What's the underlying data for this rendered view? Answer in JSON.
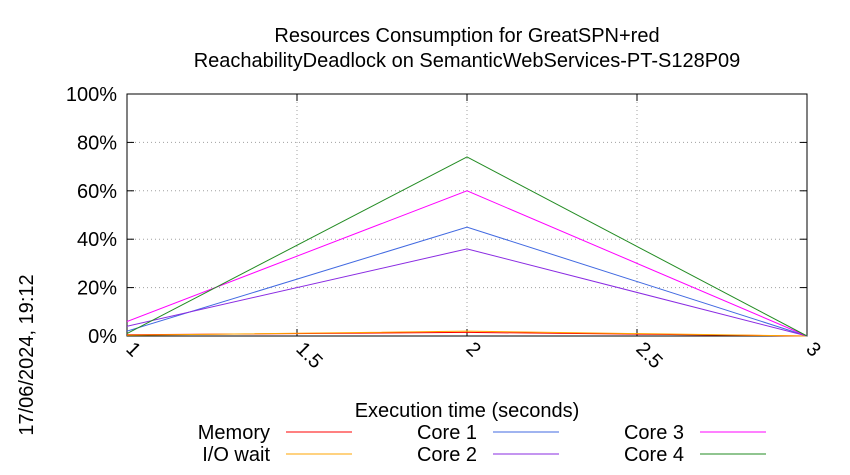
{
  "chart_data": {
    "type": "line",
    "title_line1": "Resources Consumption for GreatSPN+red",
    "title_line2": "ReachabilityDeadlock on SemanticWebServices-PT-S128P09",
    "xlabel": "Execution time (seconds)",
    "ylabel": "",
    "side_label": "17/06/2024, 19:12",
    "x": [
      1,
      2,
      3
    ],
    "xlim": [
      1,
      3
    ],
    "ylim": [
      0,
      100
    ],
    "x_ticks": [
      1,
      1.5,
      2,
      2.5,
      3
    ],
    "x_tick_labels": [
      "1",
      "1.5",
      "2",
      "2.5",
      "3"
    ],
    "y_ticks": [
      0,
      20,
      40,
      60,
      80,
      100
    ],
    "y_tick_labels": [
      "0%",
      "20%",
      "40%",
      "60%",
      "80%",
      "100%"
    ],
    "grid": true,
    "legend_placement": "bottom",
    "series": [
      {
        "name": "Memory",
        "color": "#ff0000",
        "values": [
          0.5,
          1.5,
          0
        ]
      },
      {
        "name": "I/O wait",
        "color": "#ffa500",
        "values": [
          0.3,
          2,
          0
        ]
      },
      {
        "name": "Core 1",
        "color": "#4169e1",
        "values": [
          2,
          45,
          0
        ]
      },
      {
        "name": "Core 2",
        "color": "#8a2be2",
        "values": [
          4,
          36,
          0
        ]
      },
      {
        "name": "Core 3",
        "color": "#ff00ff",
        "values": [
          6,
          60,
          0
        ]
      },
      {
        "name": "Core 4",
        "color": "#228b22",
        "values": [
          1,
          74,
          0
        ]
      }
    ]
  }
}
